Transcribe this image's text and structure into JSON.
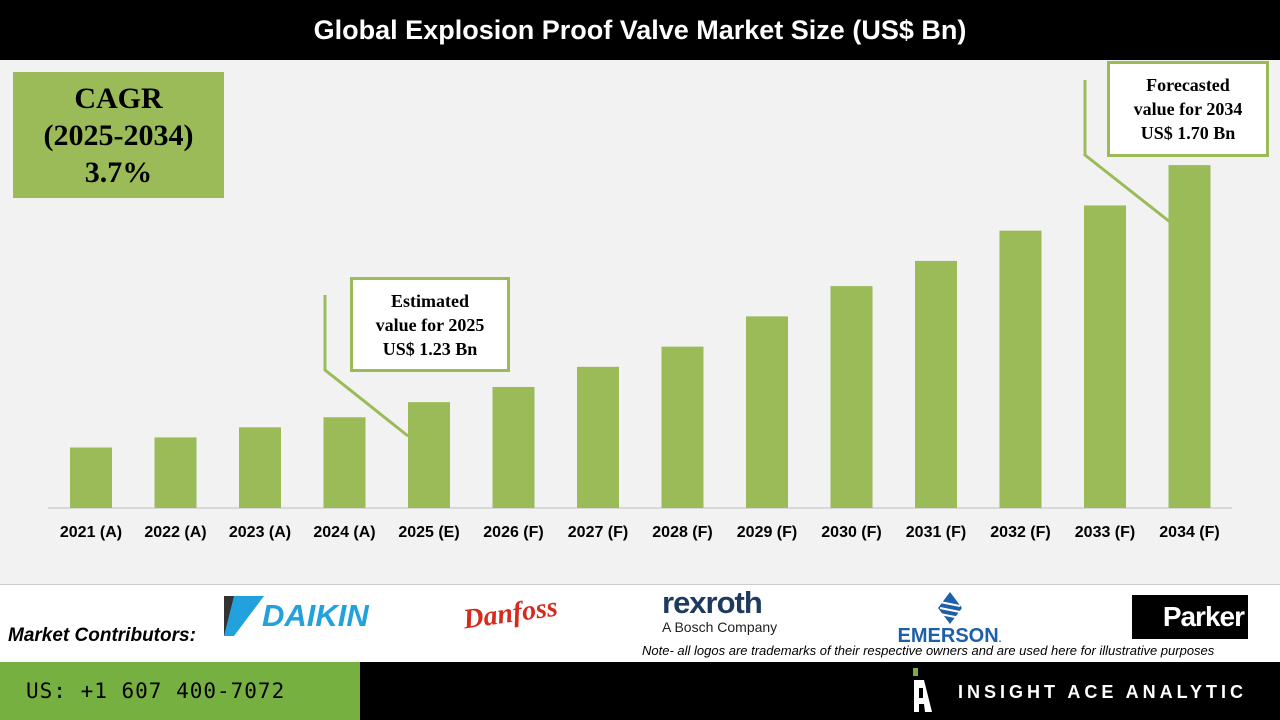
{
  "chart_data": {
    "type": "bar",
    "title": "Global Explosion Proof Valve Market Size (US$ Bn)",
    "categories": [
      "2021 (A)",
      "2022 (A)",
      "2023 (A)",
      "2024 (A)",
      "2025 (E)",
      "2026 (F)",
      "2027 (F)",
      "2028 (F)",
      "2029 (F)",
      "2030 (F)",
      "2031 (F)",
      "2032 (F)",
      "2033 (F)",
      "2034 (F)"
    ],
    "values": [
      1.14,
      1.16,
      1.18,
      1.2,
      1.23,
      1.26,
      1.3,
      1.34,
      1.4,
      1.46,
      1.51,
      1.57,
      1.62,
      1.7
    ],
    "ylim": [
      1.02,
      1.75
    ],
    "grid": false,
    "bar_color": "#9bbb59",
    "annotations": {
      "cagr": [
        "CAGR",
        "(2025-2034)",
        "3.7%"
      ],
      "estimated": [
        "Estimated",
        "value for 2025",
        "US$ 1.23 Bn"
      ],
      "forecasted": [
        "Forecasted",
        "value for 2034",
        "US$ 1.70 Bn"
      ]
    }
  },
  "footer": {
    "contributors_label": "Market Contributors:",
    "logos": [
      "DAIKIN",
      "Danfoss",
      "rexroth",
      "A Bosch Company",
      "EMERSON",
      "Parker"
    ],
    "note": "Note- all logos are trademarks of their respective owners and are used here for illustrative purposes",
    "phone": "US: +1 607 400-7072",
    "brand": "INSIGHT ACE ANALYTIC"
  }
}
